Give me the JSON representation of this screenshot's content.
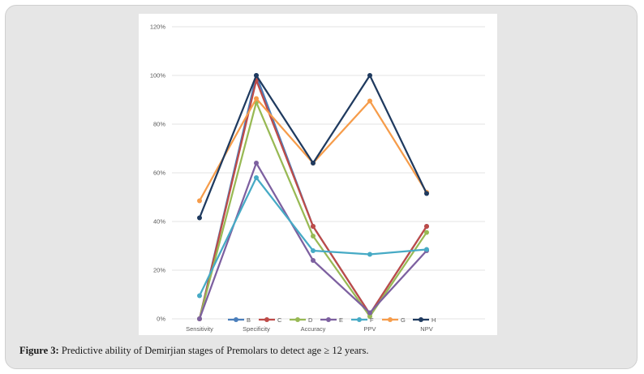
{
  "chart_data": {
    "type": "line",
    "title": "",
    "xlabel": "",
    "ylabel": "",
    "categories": [
      "Sensitivity",
      "Specificity",
      "Accuracy",
      "PPV",
      "NPV"
    ],
    "yticks": [
      "0%",
      "20%",
      "40%",
      "60%",
      "80%",
      "100%",
      "120%"
    ],
    "ylim": [
      0,
      120
    ],
    "grid": true,
    "legend_position": "bottom",
    "series": [
      {
        "name": "B",
        "color": "#4a7ebb",
        "values": [
          0,
          100,
          38,
          2,
          38
        ]
      },
      {
        "name": "C",
        "color": "#be4b48",
        "values": [
          0,
          98,
          38,
          2,
          38
        ]
      },
      {
        "name": "D",
        "color": "#98b954",
        "values": [
          0,
          89,
          34,
          1,
          35.5
        ]
      },
      {
        "name": "E",
        "color": "#7d60a0",
        "values": [
          0,
          64,
          24,
          2.5,
          28
        ]
      },
      {
        "name": "F",
        "color": "#46aac5",
        "values": [
          9.5,
          58,
          28,
          26.5,
          28.5
        ]
      },
      {
        "name": "G",
        "color": "#f69c4a",
        "values": [
          48.5,
          90.5,
          64,
          89.5,
          52
        ]
      },
      {
        "name": "H",
        "color": "#1f3a5f",
        "values": [
          41.5,
          100,
          64,
          100,
          51.5
        ]
      }
    ]
  },
  "caption": {
    "label": "Figure 3:",
    "text": " Predictive ability of Demirjian stages of Premolars to detect age ≥ 12 years."
  }
}
